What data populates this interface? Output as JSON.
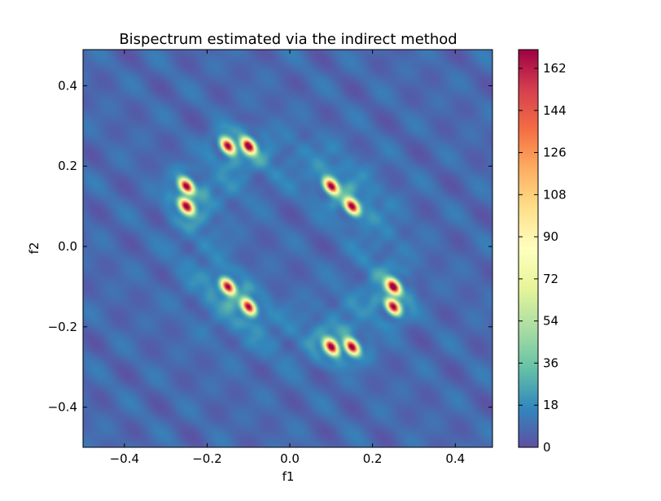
{
  "chart_data": {
    "type": "heatmap",
    "title": "Bispectrum estimated via the indirect method",
    "xlabel": "f1",
    "ylabel": "f2",
    "xlim": [
      -0.5,
      0.49
    ],
    "ylim": [
      -0.5,
      0.49
    ],
    "x_ticks": [
      -0.4,
      -0.2,
      0.0,
      0.2,
      0.4
    ],
    "x_tick_labels": [
      "−0.4",
      "−0.2",
      "0.0",
      "0.2",
      "0.4"
    ],
    "y_ticks": [
      -0.4,
      -0.2,
      0.0,
      0.2,
      0.4
    ],
    "y_tick_labels": [
      "−0.4",
      "−0.2",
      "0.0",
      "0.2",
      "0.4"
    ],
    "colormap": "Spectral_r",
    "colorbar": {
      "range": [
        0,
        170
      ],
      "ticks": [
        0,
        18,
        36,
        54,
        72,
        90,
        108,
        126,
        144,
        162
      ],
      "tick_labels": [
        "0",
        "18",
        "36",
        "54",
        "72",
        "90",
        "108",
        "126",
        "144",
        "162"
      ]
    },
    "background_level": 8,
    "peaks": [
      {
        "f1": -0.15,
        "f2": 0.25,
        "value": 168
      },
      {
        "f1": -0.1,
        "f2": 0.25,
        "value": 168
      },
      {
        "f1": -0.25,
        "f2": 0.15,
        "value": 168
      },
      {
        "f1": -0.25,
        "f2": 0.1,
        "value": 168
      },
      {
        "f1": 0.1,
        "f2": 0.15,
        "value": 168
      },
      {
        "f1": 0.15,
        "f2": 0.1,
        "value": 168
      },
      {
        "f1": -0.15,
        "f2": -0.1,
        "value": 168
      },
      {
        "f1": -0.1,
        "f2": -0.15,
        "value": 168
      },
      {
        "f1": 0.25,
        "f2": -0.1,
        "value": 168
      },
      {
        "f1": 0.25,
        "f2": -0.15,
        "value": 168
      },
      {
        "f1": 0.1,
        "f2": -0.25,
        "value": 168
      },
      {
        "f1": 0.15,
        "f2": -0.25,
        "value": 168
      }
    ],
    "grid": false,
    "legend": "none"
  }
}
